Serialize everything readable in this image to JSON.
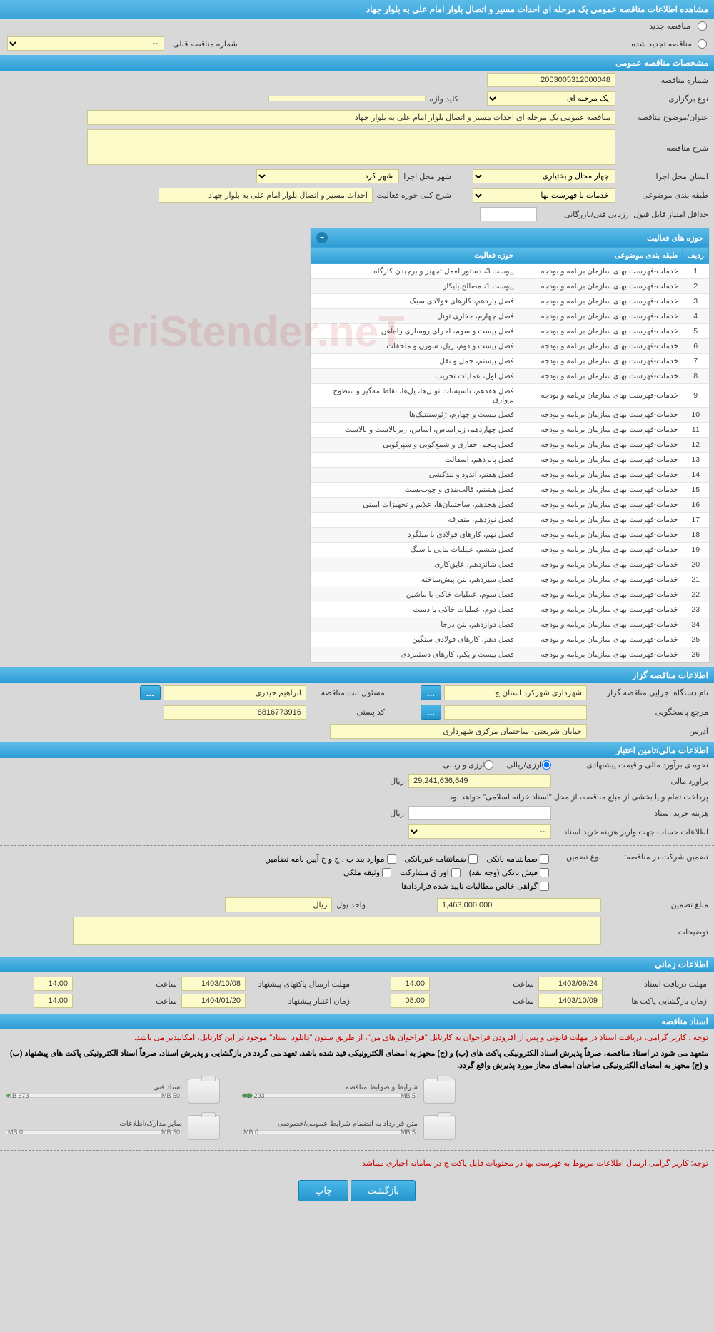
{
  "header": {
    "title": "مشاهده اطلاعات مناقصه عمومی یک مرحله ای احداث مسیر و اتصال بلوار امام علی به بلوار جهاد"
  },
  "radios": {
    "new": "مناقصه جدید",
    "renew": "مناقصه تجدید شده",
    "prev_label": "شماره مناقصه قبلی",
    "prev_value": "--"
  },
  "section1": {
    "title": "مشخصات مناقصه عمومی",
    "tender_no_label": "شماره مناقصه",
    "tender_no": "2003005312000048",
    "type_label": "نوع برگزاری",
    "type": "یک مرحله ای",
    "keyword_label": "کلید واژه",
    "keyword": "",
    "subject_label": "عنوان/موضوع مناقصه",
    "subject": "مناقصه عمومی یک مرحله ای احداث مسیر و اتصال بلوار امام علی به بلوار جهاد",
    "desc_label": "شرح مناقصه",
    "desc": "",
    "province_label": "استان محل اجرا",
    "province": "چهار محال و بختیاری",
    "city_label": "شهر محل اجرا",
    "city": "شهر کرد",
    "cat_label": "طبقه بندی موضوعی",
    "cat": "خدمات با فهرست بها",
    "activity_label": "شرح کلی حوزه فعالیت",
    "activity": "احداث مسیر و اتصال بلوار امام علی به بلوار جهاد",
    "min_score_label": "حداقل امتیاز قابل قبول ارزیابی فنی/بازرگانی",
    "min_score": ""
  },
  "activities": {
    "panel_title": "حوزه های فعالیت",
    "headers": {
      "row": "ردیف",
      "cat": "طبقه بندی موضوعی",
      "area": "حوزه فعالیت"
    },
    "rows": [
      {
        "n": "1",
        "cat": "خدمات-فهرست بهای سازمان برنامه و بودجه",
        "area": "پیوست 3، دستورالعمل تجهیز و برچیدن کارگاه"
      },
      {
        "n": "2",
        "cat": "خدمات-فهرست بهای سازمان برنامه و بودجه",
        "area": "پیوست 1، مصالح پایکار"
      },
      {
        "n": "3",
        "cat": "خدمات-فهرست بهای سازمان برنامه و بودجه",
        "area": "فصل یازدهم، کارهای فولادی سبک"
      },
      {
        "n": "4",
        "cat": "خدمات-فهرست بهای سازمان برنامه و بودجه",
        "area": "فصل چهارم، حفاری تونل"
      },
      {
        "n": "5",
        "cat": "خدمات-فهرست بهای سازمان برنامه و بودجه",
        "area": "فصل بیست و سوم، اجرای روسازی راه‌آهن"
      },
      {
        "n": "6",
        "cat": "خدمات-فهرست بهای سازمان برنامه و بودجه",
        "area": "فصل بیست و دوم، ریل، سوزن و ملحقات"
      },
      {
        "n": "7",
        "cat": "خدمات-فهرست بهای سازمان برنامه و بودجه",
        "area": "فصل بیستم، حمل و نقل"
      },
      {
        "n": "8",
        "cat": "خدمات-فهرست بهای سازمان برنامه و بودجه",
        "area": "فصل اول، عملیات تخریب"
      },
      {
        "n": "9",
        "cat": "خدمات-فهرست بهای سازمان برنامه و بودجه",
        "area": "فصل هفدهم، تاسیسات تونل‌ها، پل‌ها، نقاط مه‌گیر و سطوح پروازی"
      },
      {
        "n": "10",
        "cat": "خدمات-فهرست بهای سازمان برنامه و بودجه",
        "area": "فصل بیست و چهارم، ژئوسنتتیک‌ها"
      },
      {
        "n": "11",
        "cat": "خدمات-فهرست بهای سازمان برنامه و بودجه",
        "area": "فصل چهاردهم، زیراساس، اساس، زیربالاست و بالاست"
      },
      {
        "n": "12",
        "cat": "خدمات-فهرست بهای سازمان برنامه و بودجه",
        "area": "فصل پنجم، حفاری و شمع‌کوبی و سپرکوبی"
      },
      {
        "n": "13",
        "cat": "خدمات-فهرست بهای سازمان برنامه و بودجه",
        "area": "فصل پانزدهم، آسفالت"
      },
      {
        "n": "14",
        "cat": "خدمات-فهرست بهای سازمان برنامه و بودجه",
        "area": "فصل هفتم، اندود و بندکشی"
      },
      {
        "n": "15",
        "cat": "خدمات-فهرست بهای سازمان برنامه و بودجه",
        "area": "فصل هشتم، قالب‌بندی و چوب‌بست"
      },
      {
        "n": "16",
        "cat": "خدمات-فهرست بهای سازمان برنامه و بودجه",
        "area": "فصل هجدهم، ساختمان‌ها، علایم و تجهیزات ایمنی"
      },
      {
        "n": "17",
        "cat": "خدمات-فهرست بهای سازمان برنامه و بودجه",
        "area": "فصل نوزدهم، متفرقه"
      },
      {
        "n": "18",
        "cat": "خدمات-فهرست بهای سازمان برنامه و بودجه",
        "area": "فصل نهم، کارهای فولادی با میلگرد"
      },
      {
        "n": "19",
        "cat": "خدمات-فهرست بهای سازمان برنامه و بودجه",
        "area": "فصل ششم، عملیات بنایی با سنگ"
      },
      {
        "n": "20",
        "cat": "خدمات-فهرست بهای سازمان برنامه و بودجه",
        "area": "فصل شانزدهم، عایق‌کاری"
      },
      {
        "n": "21",
        "cat": "خدمات-فهرست بهای سازمان برنامه و بودجه",
        "area": "فصل سیزدهم، بتن پیش‌ساخته"
      },
      {
        "n": "22",
        "cat": "خدمات-فهرست بهای سازمان برنامه و بودجه",
        "area": "فصل سوم، عملیات خاکی با ماشین"
      },
      {
        "n": "23",
        "cat": "خدمات-فهرست بهای سازمان برنامه و بودجه",
        "area": "فصل دوم، عملیات خاکی با دست"
      },
      {
        "n": "24",
        "cat": "خدمات-فهرست بهای سازمان برنامه و بودجه",
        "area": "فصل دوازدهم، بتن درجا"
      },
      {
        "n": "25",
        "cat": "خدمات-فهرست بهای سازمان برنامه و بودجه",
        "area": "فصل دهم، کارهای فولادی سنگین"
      },
      {
        "n": "26",
        "cat": "خدمات-فهرست بهای سازمان برنامه و بودجه",
        "area": "فصل بیست و یکم، کارهای دستمزدی"
      }
    ]
  },
  "section2": {
    "title": "اطلاعات مناقصه گزار",
    "org_label": "نام دستگاه اجرایی مناقصه گزار",
    "org": "شهرداری شهرکرد استان چ",
    "reg_label": "مسئول ثبت مناقصه",
    "reg": "ابراهیم حیدری",
    "ref_label": "مرجع پاسخگویی",
    "ref": "",
    "post_label": "کد پستی",
    "post": "8816773916",
    "addr_label": "آدرس",
    "addr": "خیابان شریعتی- ساختمان مرکزی شهرداری",
    "dots": "..."
  },
  "section3": {
    "title": "اطلاعات مالی/تامین اعتبار",
    "est_method_label": "نحوه ی برآورد مالی و قیمت پیشنهادی",
    "est_method_opt1": "ارزی/ریالی",
    "est_method_opt2": "ارزی و ریالی",
    "est_label": "برآورد مالی",
    "est": "29,241,636,649",
    "rial": "ریال",
    "note": "پرداخت تمام و یا بخشی از مبلغ مناقصه، از محل \"اسناد خزانه اسلامی\" خواهد بود.",
    "doc_cost_label": "هزینه خرید اسناد",
    "doc_cost": "",
    "acc_label": "اطلاعات حساب جهت واریز هزینه خرید اسناد",
    "acc": "--",
    "guarantee_label": "تضمین شرکت در مناقصه:",
    "guarantee_type": "نوع تضمین",
    "cb1": "ضمانتنامه بانکی",
    "cb2": "ضمانتنامه غیربانکی",
    "cb3": "موارد بند ب ، ج و خ آیین نامه تضامین",
    "cb4": "فیش بانکی (وجه نقد)",
    "cb5": "اوراق مشارکت",
    "cb6": "وثیقه ملکی",
    "cb7": "گواهی خالص مطالبات تایید شده قراردادها",
    "amount_label": "مبلغ تضمین",
    "amount": "1,463,000,000",
    "unit_label": "واحد پول",
    "unit": "ریال",
    "explain_label": "توضیحات",
    "explain": ""
  },
  "section4": {
    "title": "اطلاعات زمانی",
    "d1_label": "مهلت دریافت اسناد",
    "d1": "1403/09/24",
    "t1_label": "ساعت",
    "t1": "14:00",
    "d2_label": "مهلت ارسال پاکتهای پیشنهاد",
    "d2": "1403/10/08",
    "t2": "14:00",
    "d3_label": "زمان بازگشایی پاکت ها",
    "d3": "1403/10/09",
    "t3": "08:00",
    "d4_label": "زمان اعتبار پیشنهاد",
    "d4": "1404/01/20",
    "t4": "14:00"
  },
  "section5": {
    "title": "اسناد مناقصه",
    "notice1": "توجه : کاربر گرامی، دریافت اسناد در مهلت قانونی و پس از افزودن فراخوان به کارتابل \"فراخوان های من\"، از طریق ستون \"دانلود اسناد\" موجود در این کارتابل، امکانپذیر می باشد.",
    "notice2": "متعهد می شود در اسناد مناقصه، صرفاً پذیرش اسناد الکترونیکی پاکت های (ب) و (ج) مجهز به امضای الکترونیکی قید شده باشد. تعهد می گردد در بازگشایی و پذیرش اسناد، صرفاً اسناد الکترونیکی پاکت های پیشنهاد (ب) و (ج) مجهز به امضای الکترونیکی صاحبان امضای مجاز مورد پذیرش واقع گردد.",
    "files": [
      {
        "name": "شرایط و ضوابط مناقصه",
        "size": "293 KB",
        "max": "5 MB",
        "pct": 6
      },
      {
        "name": "اسناد فنی",
        "size": "673 KB",
        "max": "50 MB",
        "pct": 2
      },
      {
        "name": "متن قرارداد به انضمام شرایط عمومی/خصوصی",
        "size": "0 MB",
        "max": "5 MB",
        "pct": 0
      },
      {
        "name": "سایر مدارک/اطلاعات",
        "size": "0 MB",
        "max": "50 MB",
        "pct": 0
      }
    ],
    "notice3": "توجه: کاربر گرامی ارسال اطلاعات مربوط به فهرست بها در محتویات فایل پاکت ج در سامانه اجباری میباشد."
  },
  "footer": {
    "back": "بازگشت",
    "print": "چاپ"
  },
  "watermark": "eriStender.neT"
}
